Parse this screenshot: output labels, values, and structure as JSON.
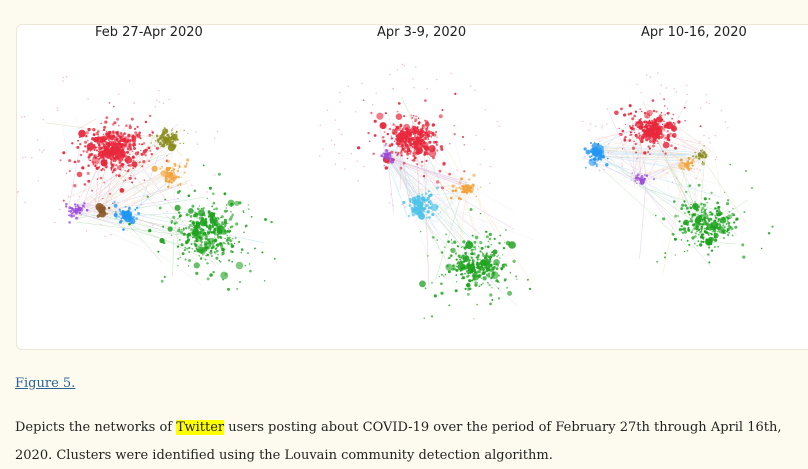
{
  "figure": {
    "panels": [
      {
        "title": "Feb 27-Apr 2020"
      },
      {
        "title": "Apr 3-9, 2020"
      },
      {
        "title": "Apr 10-16, 2020"
      }
    ],
    "cluster_colors": {
      "red": "#e8283c",
      "green": "#1fa31f",
      "blue": "#2196f3",
      "light_blue": "#4cc3ea",
      "orange": "#f2a33a",
      "olive": "#8a8c1c",
      "purple": "#9b4ddb",
      "brown": "#8b5a2b",
      "pink": "#f28bb0"
    },
    "link_text": "Figure 5."
  },
  "caption": {
    "part1": "Depicts the networks of ",
    "highlight": "Twitter",
    "part2": " users posting about COVID-19 over the period of February 27th through April 16th, 2020. Clusters were identified using the Louvain community detection algorithm."
  }
}
